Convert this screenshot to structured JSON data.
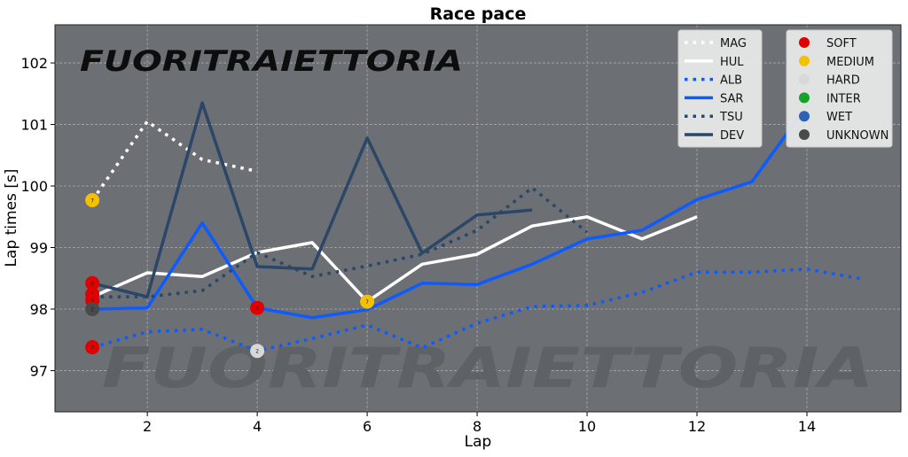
{
  "chart_data": {
    "type": "line",
    "title": "Race pace",
    "xlabel": "Lap",
    "ylabel": "Lap times [s]",
    "xlim": [
      0.32,
      15.71
    ],
    "ylim": [
      96.33,
      102.62
    ],
    "xticks": [
      2,
      4,
      6,
      8,
      10,
      12,
      14
    ],
    "yticks": [
      97,
      98,
      99,
      100,
      101,
      102
    ],
    "grid": true,
    "watermark": "FUORITRAIETTORIA",
    "series": [
      {
        "name": "MAG",
        "color": "#ffffff",
        "style": "dotted",
        "x": [
          1,
          2,
          3,
          4
        ],
        "values": [
          99.77,
          101.05,
          100.43,
          100.24
        ]
      },
      {
        "name": "HUL",
        "color": "#ffffff",
        "style": "solid",
        "x": [
          1,
          2,
          3,
          4,
          5,
          6,
          7,
          8,
          9,
          10,
          11,
          12
        ],
        "values": [
          98.2,
          98.59,
          98.53,
          98.92,
          99.08,
          98.12,
          98.73,
          98.89,
          99.35,
          99.5,
          99.14,
          99.5
        ]
      },
      {
        "name": "ALB",
        "color": "#0d5bff",
        "style": "dotted",
        "x": [
          1,
          2,
          3,
          4,
          5,
          6,
          7,
          8,
          9,
          10,
          11,
          12,
          13,
          14,
          15
        ],
        "values": [
          97.38,
          97.63,
          97.67,
          97.32,
          97.52,
          97.74,
          97.37,
          97.77,
          98.04,
          98.06,
          98.27,
          98.6,
          98.6,
          98.65,
          98.49
        ]
      },
      {
        "name": "SAR",
        "color": "#0d5bff",
        "style": "solid",
        "x": [
          1,
          2,
          3,
          4,
          5,
          6,
          7,
          8,
          9,
          10,
          11,
          12,
          13,
          14
        ],
        "values": [
          98.0,
          98.02,
          99.4,
          98.02,
          97.86,
          97.99,
          98.42,
          98.4,
          98.73,
          99.14,
          99.28,
          99.78,
          100.07,
          101.3
        ]
      },
      {
        "name": "TSU",
        "color": "#2b4768",
        "style": "dotted",
        "x": [
          1,
          2,
          3,
          4,
          5,
          6,
          7,
          8,
          9,
          10
        ],
        "values": [
          98.2,
          98.2,
          98.3,
          98.92,
          98.53,
          98.7,
          98.89,
          99.28,
          99.97,
          99.25
        ]
      },
      {
        "name": "DEV",
        "color": "#2b4768",
        "style": "solid",
        "x": [
          1,
          2,
          3,
          4,
          5,
          6,
          7,
          8,
          9
        ],
        "values": [
          98.42,
          98.2,
          101.35,
          98.69,
          98.65,
          100.78,
          98.91,
          99.53,
          99.61
        ]
      }
    ],
    "compounds": [
      {
        "name": "SOFT",
        "color": "#e00000"
      },
      {
        "name": "MEDIUM",
        "color": "#f5c000"
      },
      {
        "name": "HARD",
        "color": "#d8d8d8"
      },
      {
        "name": "INTER",
        "color": "#13a327"
      },
      {
        "name": "WET",
        "color": "#2d62b5"
      },
      {
        "name": "UNKNOWN",
        "color": "#4a4a4a"
      }
    ],
    "pit_markers": [
      {
        "x": 1,
        "y": 99.77,
        "compound": "MEDIUM",
        "label": "7"
      },
      {
        "x": 1,
        "y": 98.42,
        "compound": "SOFT",
        "label": "6"
      },
      {
        "x": 1,
        "y": 98.24,
        "compound": "SOFT",
        "label": "5"
      },
      {
        "x": 1,
        "y": 98.14,
        "compound": "SOFT",
        "label": "5"
      },
      {
        "x": 1,
        "y": 98.0,
        "compound": "UNKNOWN",
        "label": "2"
      },
      {
        "x": 1,
        "y": 97.38,
        "compound": "SOFT",
        "label": "7"
      },
      {
        "x": 4,
        "y": 98.02,
        "compound": "SOFT",
        "label": "2"
      },
      {
        "x": 4,
        "y": 97.32,
        "compound": "HARD",
        "label": "2"
      },
      {
        "x": 6,
        "y": 98.12,
        "compound": "MEDIUM",
        "label": "7"
      }
    ]
  }
}
